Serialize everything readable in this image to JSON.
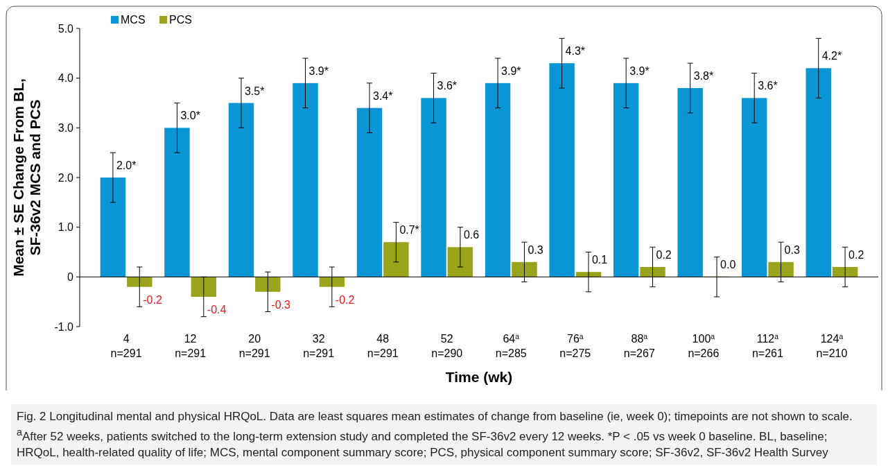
{
  "chart_data": {
    "type": "bar",
    "categories": [
      "4\nn=291",
      "12\nn=291",
      "20\nn=291",
      "32\nn=291",
      "48\nn=291",
      "52\nn=290",
      "64$^{a}$\nn=285",
      "76$^{a}$\nn=275",
      "88$^{a}$\nn=267",
      "100$^{a}$\nn=266",
      "112$^{a}$\nn=261",
      "124$^{a}$\nn=210"
    ],
    "series": [
      {
        "name": "MCS",
        "color": "#0a96d4",
        "values": [
          2.0,
          3.0,
          3.5,
          3.9,
          3.4,
          3.6,
          3.9,
          4.3,
          3.9,
          3.8,
          3.6,
          4.2
        ],
        "errors": [
          0.5,
          0.5,
          0.5,
          0.5,
          0.5,
          0.5,
          0.5,
          0.5,
          0.5,
          0.5,
          0.5,
          [
            0.6,
            0.6
          ]
        ],
        "value_labels": [
          "2.0*",
          "3.0*",
          "3.5*",
          "3.9*",
          "3.4*",
          "3.6*",
          "3.9*",
          "4.3*",
          "3.9*",
          "3.8*",
          "3.6*",
          "4.2*"
        ]
      },
      {
        "name": "PCS",
        "color": "#99a41c",
        "values": [
          -0.2,
          -0.4,
          -0.3,
          -0.2,
          0.7,
          0.6,
          0.3,
          0.1,
          0.2,
          0.0,
          0.3,
          0.2
        ],
        "errors": [
          0.4,
          0.4,
          0.4,
          0.4,
          0.4,
          0.4,
          0.4,
          0.4,
          0.4,
          0.4,
          0.4,
          0.4
        ],
        "value_labels": [
          "-0.2",
          "-0.4",
          "-0.3",
          "-0.2",
          "0.7*",
          "0.6",
          "0.3",
          "0.1",
          "0.2",
          "0.0",
          "0.3",
          "0.2"
        ]
      }
    ],
    "xlabel": "Time (wk)",
    "ylabel": "Mean ± SE Change From BL,\nSF-36v2 MCS and PCS",
    "ylim": [
      -1.0,
      5.0
    ],
    "yticks": [
      {
        "value": -1,
        "label": "-1.0"
      },
      0,
      {
        "value": 1,
        "label": "1.0"
      },
      {
        "value": 2,
        "label": "2.0"
      },
      {
        "value": 3,
        "label": "3.0"
      },
      {
        "value": 4,
        "label": "4.0"
      },
      {
        "value": 5,
        "label": "5.0"
      }
    ],
    "legend": "top left",
    "annotations": [
      "Fig. 2 Longitudinal mental and physical HRQoL. Data are least squares mean estimates of change from baseline (ie, week 0); timepoints are not shown to scale. $^{a}$After 52 weeks, patients switched to the long-term extension study and completed the SF-36v2 every 12 weeks. *P < .05 vs week 0 baseline. BL, baseline; HRQoL, health-related quality of life; MCS, mental component summary score; PCS, physical component summary score; SF-36v2, SF-36v2 Health Survey"
    ]
  }
}
